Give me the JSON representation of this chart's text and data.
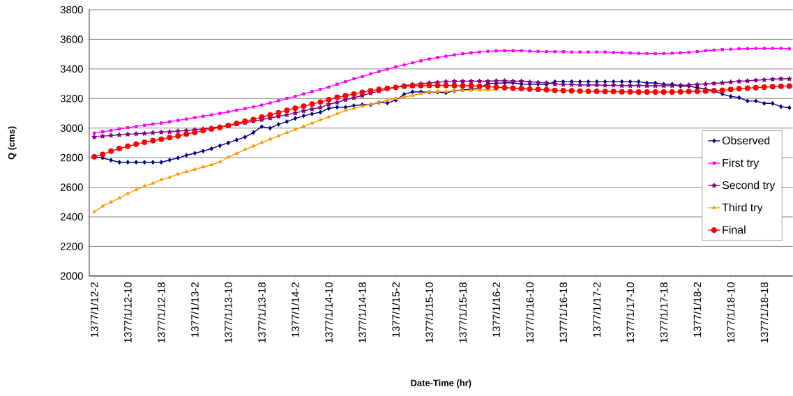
{
  "chart_data": {
    "type": "line",
    "xlabel": "Date-Time (hr)",
    "ylabel": "Q (cms)",
    "categories": [
      "1377/1/12-2",
      null,
      null,
      null,
      "1377/1/12-10",
      null,
      null,
      null,
      "1377/1/12-18",
      null,
      null,
      null,
      "1377/1/13-2",
      null,
      null,
      null,
      "1377/1/13-10",
      null,
      null,
      null,
      "1377/1/13-18",
      null,
      null,
      null,
      "1377/1/14-2",
      null,
      null,
      null,
      "1377/1/14-10",
      null,
      null,
      null,
      "1377/1/14-18",
      null,
      null,
      null,
      "1377/1/15-2",
      null,
      null,
      null,
      "1377/1/15-10",
      null,
      null,
      null,
      "1377/1/15-18",
      null,
      null,
      null,
      "1377/1/16-2",
      null,
      null,
      null,
      "1377/1/16-10",
      null,
      null,
      null,
      "1377/1/16-18",
      null,
      null,
      null,
      "1377/1/17-2",
      null,
      null,
      null,
      "1377/1/17-10",
      null,
      null,
      null,
      "1377/1/17-18",
      null,
      null,
      null,
      "1377/1/18-2",
      null,
      null,
      null,
      "1377/1/18-10",
      null,
      null,
      null,
      "1377/1/18-18",
      null,
      null,
      null
    ],
    "series": [
      {
        "name": "Observed",
        "color": "#000080",
        "marker": "diamond",
        "values": [
          2805,
          2798,
          2783,
          2769,
          2769,
          2769,
          2769,
          2769,
          2769,
          2784,
          2798,
          2816,
          2830,
          2845,
          2861,
          2881,
          2900,
          2920,
          2939,
          2970,
          3010,
          3000,
          3025,
          3044,
          3065,
          3083,
          3096,
          3107,
          3133,
          3141,
          3141,
          3152,
          3158,
          3158,
          3173,
          3169,
          3189,
          3228,
          3245,
          3245,
          3242,
          3244,
          3239,
          3252,
          3258,
          3263,
          3270,
          3302,
          3302,
          3306,
          3306,
          3297,
          3297,
          3297,
          3294,
          3314,
          3314,
          3314,
          3314,
          3314,
          3314,
          3314,
          3314,
          3314,
          3314,
          3314,
          3305,
          3305,
          3297,
          3297,
          3284,
          3284,
          3273,
          3264,
          3252,
          3230,
          3214,
          3206,
          3183,
          3183,
          3167,
          3167,
          3145,
          3138
        ]
      },
      {
        "name": "First try",
        "color": "#ff00ff",
        "marker": "square",
        "values": [
          2966,
          2975,
          2984,
          2995,
          3003,
          3011,
          3019,
          3027,
          3034,
          3042,
          3052,
          3061,
          3071,
          3080,
          3090,
          3099,
          3110,
          3121,
          3132,
          3143,
          3156,
          3170,
          3185,
          3200,
          3215,
          3231,
          3247,
          3262,
          3277,
          3297,
          3314,
          3333,
          3348,
          3367,
          3383,
          3398,
          3414,
          3427,
          3441,
          3455,
          3467,
          3477,
          3486,
          3495,
          3503,
          3509,
          3514,
          3519,
          3522,
          3523,
          3523,
          3523,
          3520,
          3519,
          3517,
          3516,
          3516,
          3514,
          3514,
          3514,
          3514,
          3514,
          3511,
          3509,
          3508,
          3505,
          3505,
          3503,
          3505,
          3506,
          3509,
          3512,
          3517,
          3523,
          3527,
          3530,
          3533,
          3536,
          3537,
          3539,
          3539,
          3539,
          3539,
          3536
        ]
      },
      {
        "name": "Second try",
        "color": "#800080",
        "marker": "star",
        "values": [
          2939,
          2945,
          2950,
          2954,
          2958,
          2961,
          2964,
          2969,
          2972,
          2975,
          2980,
          2983,
          2989,
          2994,
          3002,
          3008,
          3017,
          3027,
          3036,
          3046,
          3057,
          3068,
          3079,
          3090,
          3102,
          3116,
          3129,
          3138,
          3161,
          3173,
          3192,
          3205,
          3220,
          3236,
          3250,
          3264,
          3277,
          3286,
          3294,
          3300,
          3305,
          3309,
          3314,
          3316,
          3317,
          3317,
          3317,
          3317,
          3319,
          3319,
          3317,
          3317,
          3312,
          3309,
          3305,
          3298,
          3295,
          3294,
          3292,
          3291,
          3291,
          3289,
          3289,
          3287,
          3287,
          3287,
          3286,
          3286,
          3286,
          3287,
          3289,
          3291,
          3295,
          3298,
          3302,
          3306,
          3311,
          3316,
          3319,
          3323,
          3327,
          3330,
          3333,
          3333
        ]
      },
      {
        "name": "Third try",
        "color": "#ff9900",
        "marker": "triangle",
        "values": [
          2434,
          2472,
          2500,
          2528,
          2557,
          2583,
          2608,
          2626,
          2651,
          2667,
          2689,
          2704,
          2720,
          2737,
          2753,
          2770,
          2803,
          2828,
          2855,
          2878,
          2902,
          2925,
          2946,
          2969,
          2990,
          3012,
          3033,
          3055,
          3075,
          3097,
          3119,
          3133,
          3148,
          3161,
          3173,
          3187,
          3200,
          3211,
          3220,
          3233,
          3242,
          3247,
          3248,
          3252,
          3255,
          3256,
          3258,
          3258,
          3259,
          null,
          null,
          null,
          null,
          null,
          null,
          null,
          null,
          null,
          null,
          null,
          null,
          null,
          null,
          null,
          null,
          null,
          null,
          null,
          null,
          null,
          null,
          null,
          null,
          null,
          null,
          null,
          null,
          null,
          null,
          null,
          null,
          null,
          null,
          null
        ]
      },
      {
        "name": "Final",
        "color": "#ff0000",
        "marker": "circle",
        "values": [
          2806,
          2822,
          2844,
          2862,
          2877,
          2891,
          2904,
          2915,
          2925,
          2936,
          2947,
          2960,
          2970,
          2983,
          2994,
          3005,
          3018,
          3032,
          3046,
          3058,
          3074,
          3088,
          3104,
          3120,
          3134,
          3148,
          3162,
          3176,
          3192,
          3208,
          3219,
          3230,
          3242,
          3252,
          3262,
          3269,
          3275,
          3283,
          3286,
          3287,
          3289,
          3289,
          3289,
          3287,
          3286,
          3286,
          3283,
          3280,
          3277,
          3273,
          3270,
          3267,
          3264,
          3261,
          3259,
          3255,
          3253,
          3252,
          3250,
          3248,
          3248,
          3247,
          3247,
          3245,
          3245,
          3244,
          3244,
          3244,
          3244,
          3244,
          3245,
          3247,
          3248,
          3250,
          3253,
          3256,
          3261,
          3266,
          3270,
          3273,
          3277,
          3280,
          3283,
          3284
        ]
      }
    ],
    "ylim": [
      2000,
      3800
    ],
    "yticks": [
      2000,
      2200,
      2400,
      2600,
      2800,
      3000,
      3200,
      3400,
      3600,
      3800
    ],
    "grid": "y",
    "legend": "right"
  }
}
